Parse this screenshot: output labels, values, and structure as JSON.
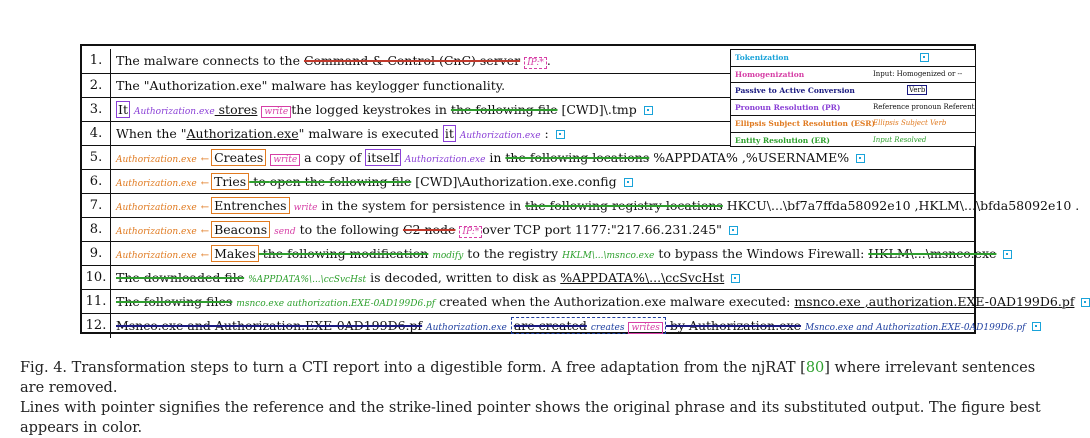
{
  "legend": {
    "items": [
      {
        "label": "Tokenization",
        "color": "#1aa3d9",
        "sample": ""
      },
      {
        "label": "Homogenization",
        "color": "#d63fa6",
        "sample": "Input: Homogenized or --"
      },
      {
        "label": "Passive to Active Conversion",
        "color": "#1a1a80",
        "sample": "Verb"
      },
      {
        "label": "Pronoun Resolution (PR)",
        "color": "#8a3fd6",
        "sample": "Reference  pronoun  Referent"
      },
      {
        "label": "Ellipsis Subject Resolution (ESR)",
        "color": "#e07a20",
        "sample": "Ellipsis Subject  Verb"
      },
      {
        "label": "Entity Resolution (ER)",
        "color": "#2ea02e",
        "sample": "Input Resolved"
      }
    ]
  },
  "rows": [
    {
      "n": "1.",
      "parts": {
        "a": "The malware connects to the ",
        "b": "Command & Control (CnC) server",
        "c": "IP:*",
        "d": "."
      }
    },
    {
      "n": "2.",
      "parts": {
        "a": "The \"Authorization.exe\" malware has keylogger functionality."
      }
    },
    {
      "n": "3.",
      "parts": {
        "a": "It",
        "b": "Authorization.exe",
        "c": " stores",
        "d": "write",
        "e": "the logged keystrokes in ",
        "f": "the following file",
        "g": " [CWD]\\.tmp"
      }
    },
    {
      "n": "4.",
      "parts": {
        "a": "When the \"",
        "b": "Authorization.exe",
        "c": "\" malware is executed ",
        "d": "it",
        "e": "Authorization.exe",
        "f": " :"
      }
    },
    {
      "n": "5.",
      "parts": {
        "a": "Authorization.exe",
        "b": "Creates",
        "c": "write",
        "d": " a copy of ",
        "e": "itself",
        "f": "Authorization.exe",
        "g": " in ",
        "h": "the following locations",
        "i": " %APPDATA% ,%USERNAME%"
      }
    },
    {
      "n": "6.",
      "parts": {
        "a": "Authorization.exe",
        "b": "Tries",
        "c": " to ",
        "d": "open the following file",
        "e": " [CWD]\\Authorization.exe.config"
      }
    },
    {
      "n": "7.",
      "parts": {
        "a": "Authorization.exe",
        "b": "Entrenches",
        "c": "write",
        "d": " in the system for persistence in ",
        "e": "the following registry locations",
        "f": " HKCU\\...\\bf7a7ffda58092e10 ,HKLM\\...\\bfda58092e10 ."
      }
    },
    {
      "n": "8.",
      "parts": {
        "a": "Authorization.exe",
        "b": "Beacons",
        "c": "send",
        "d": " to the following ",
        "e": "C2 node",
        "f": "IP:*",
        "g": "over TCP port 1177:\"217.66.231.245\""
      }
    },
    {
      "n": "9.",
      "parts": {
        "a": "Authorization.exe",
        "b": "Makes",
        "c": " the following modification",
        "d": "modify",
        "e": " to the registry ",
        "f": "HKLM\\...\\msnco.exe",
        "g": " to bypass the Windows Firewall: ",
        "h": "HKLM\\...\\msnco.exe"
      }
    },
    {
      "n": "10.",
      "parts": {
        "a": "The downloaded file",
        "b": "%APPDATA%\\...\\ccSvcHst",
        "c": " is decoded, written to disk as ",
        "d": "%APPDATA%\\...\\ccSvcHst"
      }
    },
    {
      "n": "11.",
      "parts": {
        "a": "The following files",
        "b": "msnco.exe  authorization.EXE-0AD199D6.pf",
        "c": " created when the Authorization.exe malware executed: ",
        "d": "msnco.exe ,authorization.EXE-0AD199D6.pf"
      }
    },
    {
      "n": "12.",
      "parts": {
        "a": "Msnco.exe and Authorization.EXE-0AD199D6.pf",
        "b": "Authorization.exe",
        "c": "are created",
        "d": "creates",
        "e": "writes",
        "f": " by Authorization.exe",
        "g": "Msnco.exe and Authorization.EXE-0AD199D6.pf"
      }
    }
  ],
  "caption": {
    "label": "Fig. 4.",
    "text1": "  Transformation steps to turn a CTI report into a digestible form. A free adaptation from the njRAT [",
    "ref": "80",
    "text2": "] where irrelevant sentences are removed.",
    "text3": "Lines with pointer signifies the reference and the strike-lined pointer shows the original phrase and its substituted output. The figure best appears in color."
  }
}
